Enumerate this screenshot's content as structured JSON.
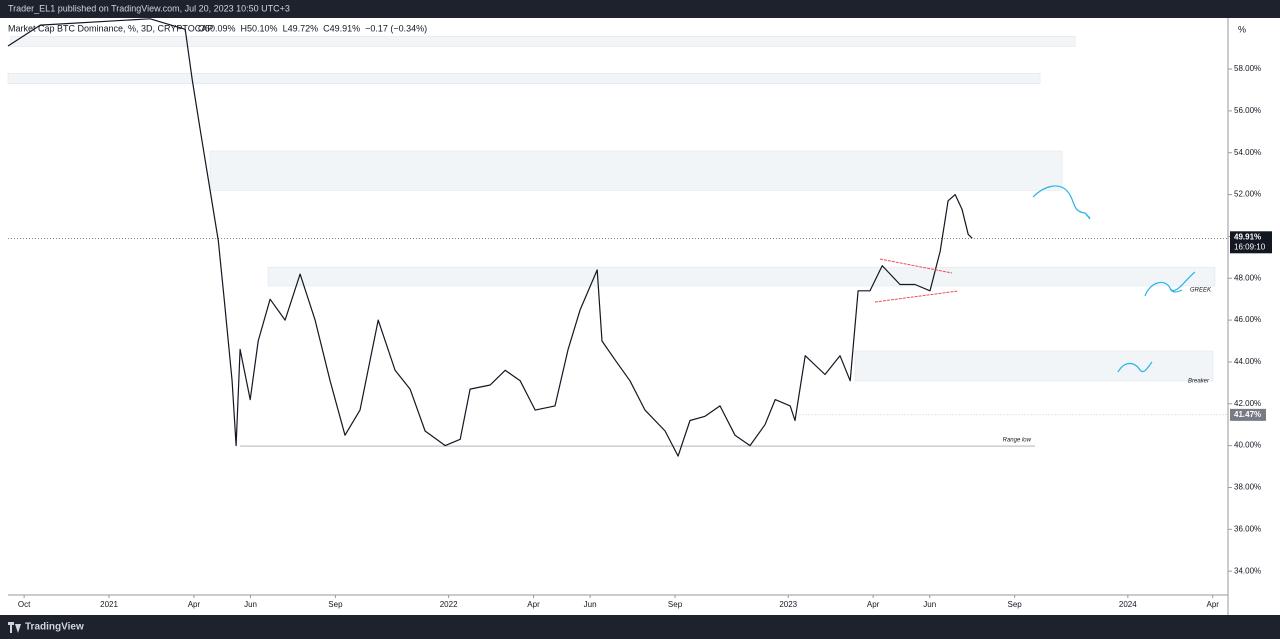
{
  "header": {
    "publisher": "Trader_EL1 published on TradingView.com, Jul 20, 2023 10:50 UTC+3"
  },
  "footer": {
    "brand": "TradingView"
  },
  "chart_data": {
    "type": "line",
    "title": "Market Cap BTC Dominance, %, 3D, CRYPTOCAP",
    "ohlc": [
      "O50.09%",
      "H50.10%",
      "L49.72%",
      "C49.91%",
      "−0.17 (−0.34%)"
    ],
    "unit_label": "%",
    "color": "#131722",
    "x": [
      -0.57,
      0.57,
      4.45,
      5.69,
      5.94,
      6.22,
      6.57,
      6.86,
      7.07,
      7.35,
      7.49,
      7.63,
      7.99,
      8.27,
      8.69,
      9.22,
      9.75,
      10.28,
      10.81,
      11.34,
      11.87,
      12.51,
      13.11,
      13.64,
      14.17,
      14.88,
      15.41,
      15.76,
      16.47,
      17.0,
      17.53,
      18.06,
      18.76,
      19.22,
      19.65,
      20.25,
      20.42,
      20.88,
      21.41,
      21.94,
      22.65,
      23.11,
      23.53,
      24.06,
      24.59,
      25.12,
      25.65,
      26.18,
      26.54,
      27.07,
      27.24,
      27.6,
      28.3,
      28.83,
      29.19,
      29.47,
      29.89,
      30.32,
      30.95,
      31.48,
      32.01,
      32.37,
      32.65,
      32.9,
      33.14,
      33.36,
      33.5
    ],
    "values": [
      59.1,
      60.1,
      60.4,
      59.9,
      57.5,
      55.1,
      52.2,
      49.8,
      47.0,
      43.1,
      40.0,
      44.6,
      42.2,
      45.0,
      47.0,
      46.0,
      48.2,
      46.0,
      43.1,
      40.5,
      41.7,
      46.0,
      43.6,
      42.7,
      40.7,
      40.0,
      40.3,
      42.7,
      42.9,
      43.6,
      43.1,
      41.7,
      41.9,
      44.6,
      46.5,
      48.4,
      45.0,
      44.1,
      43.1,
      41.7,
      40.7,
      39.5,
      41.2,
      41.4,
      41.9,
      40.5,
      40.0,
      41.0,
      42.2,
      41.9,
      41.2,
      44.3,
      43.4,
      44.3,
      43.1,
      47.4,
      47.4,
      48.6,
      47.7,
      47.7,
      47.4,
      49.3,
      51.7,
      52.0,
      51.3,
      50.1,
      49.91
    ],
    "xlim": [
      -0.57,
      42.54
    ],
    "ylim": [
      32.86,
      60.44
    ],
    "yticks": [
      {
        "value": 34,
        "label": "34.00%"
      },
      {
        "value": 36,
        "label": "36.00%"
      },
      {
        "value": 38,
        "label": "38.00%"
      },
      {
        "value": 40,
        "label": "40.00%"
      },
      {
        "value": 42,
        "label": "42.00%"
      },
      {
        "value": 44,
        "label": "44.00%"
      },
      {
        "value": 46,
        "label": "46.00%"
      },
      {
        "value": 48,
        "label": "48.00%"
      },
      {
        "value": 50,
        "label": "50.00%"
      },
      {
        "value": 52,
        "label": "52.00%"
      },
      {
        "value": 54,
        "label": "54.00%"
      },
      {
        "value": 56,
        "label": "56.00%"
      },
      {
        "value": 58,
        "label": "58.00%"
      }
    ],
    "xticks": [
      {
        "value": 0,
        "label": "Oct"
      },
      {
        "value": 3,
        "label": "2021"
      },
      {
        "value": 6,
        "label": "Apr"
      },
      {
        "value": 8,
        "label": "Jun"
      },
      {
        "value": 11,
        "label": "Sep"
      },
      {
        "value": 15,
        "label": "2022"
      },
      {
        "value": 18,
        "label": "Apr"
      },
      {
        "value": 20,
        "label": "Jun"
      },
      {
        "value": 23,
        "label": "Sep"
      },
      {
        "value": 27,
        "label": "2023"
      },
      {
        "value": 30,
        "label": "Apr"
      },
      {
        "value": 32,
        "label": "Jun"
      },
      {
        "value": 35,
        "label": "Sep"
      },
      {
        "value": 39,
        "label": "2024"
      },
      {
        "value": 42,
        "label": "Apr"
      }
    ],
    "last_price": {
      "value": 49.91,
      "label": "49.91%",
      "countdown": "16:09:10"
    },
    "level": {
      "value": 41.47,
      "label": "41.47%",
      "from": 27.4
    },
    "zones": [
      {
        "x": [
          -0.49,
          37.14
        ],
        "y": [
          59.08,
          59.56
        ]
      },
      {
        "x": [
          -0.57,
          35.9
        ],
        "y": [
          57.3,
          57.8
        ]
      },
      {
        "x": [
          6.57,
          36.68
        ],
        "y": [
          52.2,
          54.08
        ]
      },
      {
        "x": [
          8.62,
          42.08
        ],
        "y": [
          47.63,
          48.53
        ],
        "label": "GREEK"
      },
      {
        "x": [
          29.36,
          42.01
        ],
        "y": [
          43.09,
          44.52
        ],
        "label": "Breaker"
      }
    ],
    "range_low": {
      "x": [
        7.63,
        35.72
      ],
      "value": 39.98,
      "label": "Range low"
    }
  }
}
